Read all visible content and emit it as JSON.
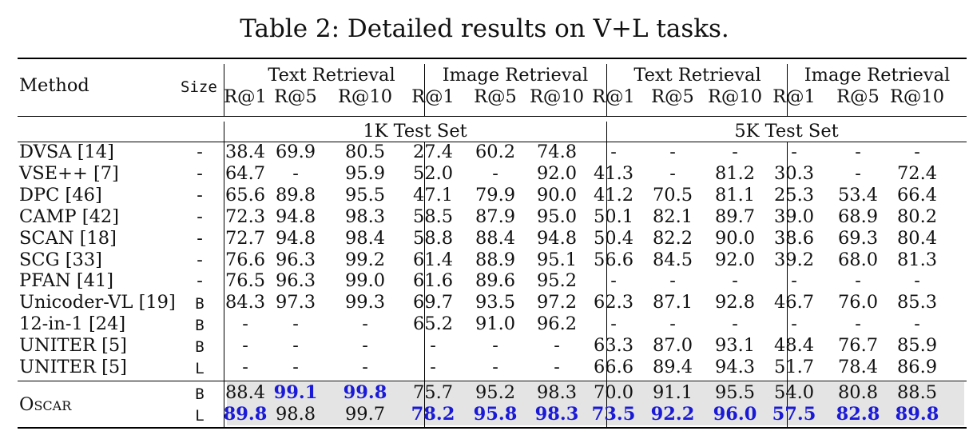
{
  "caption": "Table 2: Detailed results on V+L tasks.",
  "header": {
    "method": "Method",
    "size": "Size",
    "groups": [
      "Text Retrieval",
      "Image Retrieval",
      "Text Retrieval",
      "Image Retrieval"
    ],
    "metrics": [
      "R@1",
      "R@5",
      "R@10",
      "R@1",
      "R@5",
      "R@10",
      "R@1",
      "R@5",
      "R@10",
      "R@1",
      "R@5",
      "R@10"
    ],
    "test_sets": [
      "1K Test Set",
      "5K Test Set"
    ]
  },
  "rows": [
    {
      "method": "DVSA [14]",
      "size": "-",
      "values": [
        "38.4",
        "69.9",
        "80.5",
        "27.4",
        "60.2",
        "74.8",
        "-",
        "-",
        "-",
        "-",
        "-",
        "-"
      ]
    },
    {
      "method": "VSE++ [7]",
      "size": "-",
      "values": [
        "64.7",
        "-",
        "95.9",
        "52.0",
        "-",
        "92.0",
        "41.3",
        "-",
        "81.2",
        "30.3",
        "-",
        "72.4"
      ]
    },
    {
      "method": "DPC [46]",
      "size": "-",
      "values": [
        "65.6",
        "89.8",
        "95.5",
        "47.1",
        "79.9",
        "90.0",
        "41.2",
        "70.5",
        "81.1",
        "25.3",
        "53.4",
        "66.4"
      ]
    },
    {
      "method": "CAMP [42]",
      "size": "-",
      "values": [
        "72.3",
        "94.8",
        "98.3",
        "58.5",
        "87.9",
        "95.0",
        "50.1",
        "82.1",
        "89.7",
        "39.0",
        "68.9",
        "80.2"
      ]
    },
    {
      "method": "SCAN [18]",
      "size": "-",
      "values": [
        "72.7",
        "94.8",
        "98.4",
        "58.8",
        "88.4",
        "94.8",
        "50.4",
        "82.2",
        "90.0",
        "38.6",
        "69.3",
        "80.4"
      ]
    },
    {
      "method": "SCG [33]",
      "size": "-",
      "values": [
        "76.6",
        "96.3",
        "99.2",
        "61.4",
        "88.9",
        "95.1",
        "56.6",
        "84.5",
        "92.0",
        "39.2",
        "68.0",
        "81.3"
      ]
    },
    {
      "method": "PFAN [41]",
      "size": "-",
      "values": [
        "76.5",
        "96.3",
        "99.0",
        "61.6",
        "89.6",
        "95.2",
        "-",
        "-",
        "-",
        "-",
        "-",
        "-"
      ]
    },
    {
      "method": "Unicoder-VL [19]",
      "size": "B",
      "values": [
        "84.3",
        "97.3",
        "99.3",
        "69.7",
        "93.5",
        "97.2",
        "62.3",
        "87.1",
        "92.8",
        "46.7",
        "76.0",
        "85.3"
      ]
    },
    {
      "method": "12-in-1 [24]",
      "size": "B",
      "values": [
        "-",
        "-",
        "-",
        "65.2",
        "91.0",
        "96.2",
        "-",
        "-",
        "-",
        "-",
        "-",
        "-"
      ]
    },
    {
      "method": "UNITER [5]",
      "size": "B",
      "values": [
        "-",
        "-",
        "-",
        "-",
        "-",
        "-",
        "63.3",
        "87.0",
        "93.1",
        "48.4",
        "76.7",
        "85.9"
      ]
    },
    {
      "method": "UNITER [5]",
      "size": "L",
      "values": [
        "-",
        "-",
        "-",
        "-",
        "-",
        "-",
        "66.6",
        "89.4",
        "94.3",
        "51.7",
        "78.4",
        "86.9"
      ]
    }
  ],
  "oscar": {
    "method_first": "O",
    "method_rest": "SCAR",
    "rows": [
      {
        "size": "B",
        "values": [
          "88.4",
          "99.1",
          "99.8",
          "75.7",
          "95.2",
          "98.3",
          "70.0",
          "91.1",
          "95.5",
          "54.0",
          "80.8",
          "88.5"
        ],
        "bold": [
          false,
          true,
          true,
          false,
          false,
          false,
          false,
          false,
          false,
          false,
          false,
          false
        ]
      },
      {
        "size": "L",
        "values": [
          "89.8",
          "98.8",
          "99.7",
          "78.2",
          "95.8",
          "98.3",
          "73.5",
          "92.2",
          "96.0",
          "57.5",
          "82.8",
          "89.8"
        ],
        "bold": [
          true,
          false,
          false,
          true,
          true,
          true,
          true,
          true,
          true,
          true,
          true,
          true
        ]
      }
    ]
  },
  "colors": {
    "bold_text": "#1a1ad6",
    "shade": "#e4e4e4"
  }
}
